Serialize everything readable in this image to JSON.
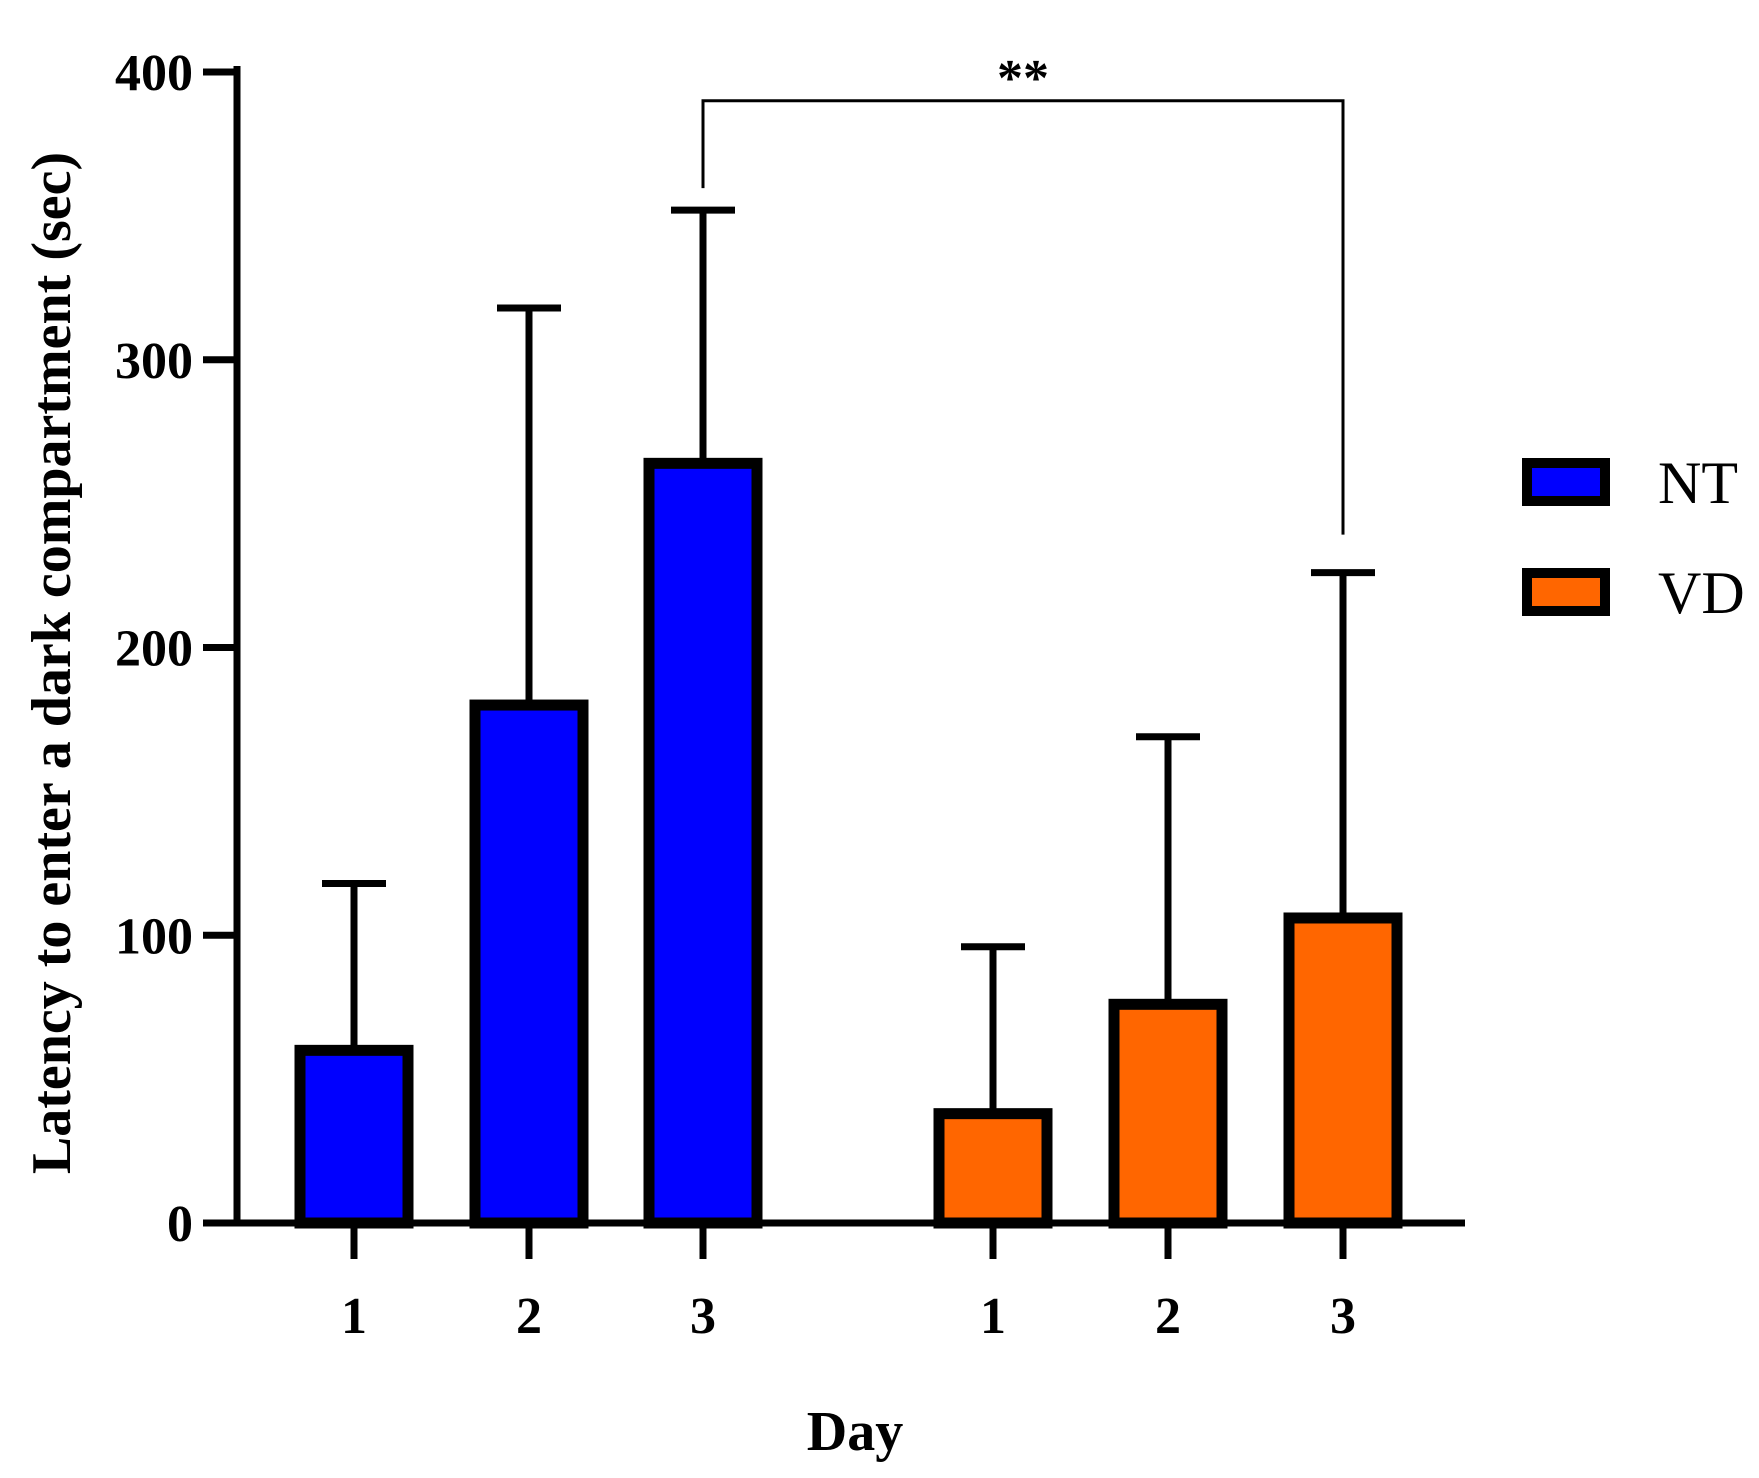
{
  "chart_data": {
    "type": "bar",
    "title": "",
    "xlabel": "Day",
    "ylabel": "Latency to enter a dark compartment (sec)",
    "ylim": [
      0,
      400
    ],
    "yticks": [
      0,
      100,
      200,
      300,
      400
    ],
    "ytick_labels": [
      "0",
      "100",
      "200",
      "300",
      "400"
    ],
    "grid": false,
    "legend_position": "right",
    "categories": [
      "1",
      "2",
      "3"
    ],
    "series": [
      {
        "name": "NT",
        "color": "#0000ff",
        "values": [
          60,
          180,
          264
        ],
        "errors": [
          58,
          138,
          88
        ]
      },
      {
        "name": "VD",
        "color": "#ff6600",
        "values": [
          38,
          76,
          106
        ],
        "errors": [
          58,
          93,
          120
        ]
      }
    ],
    "annotations": [
      {
        "text": "**",
        "from": {
          "series": "NT",
          "category": "3"
        },
        "to": {
          "series": "VD",
          "category": "3"
        },
        "level": 390
      }
    ]
  }
}
